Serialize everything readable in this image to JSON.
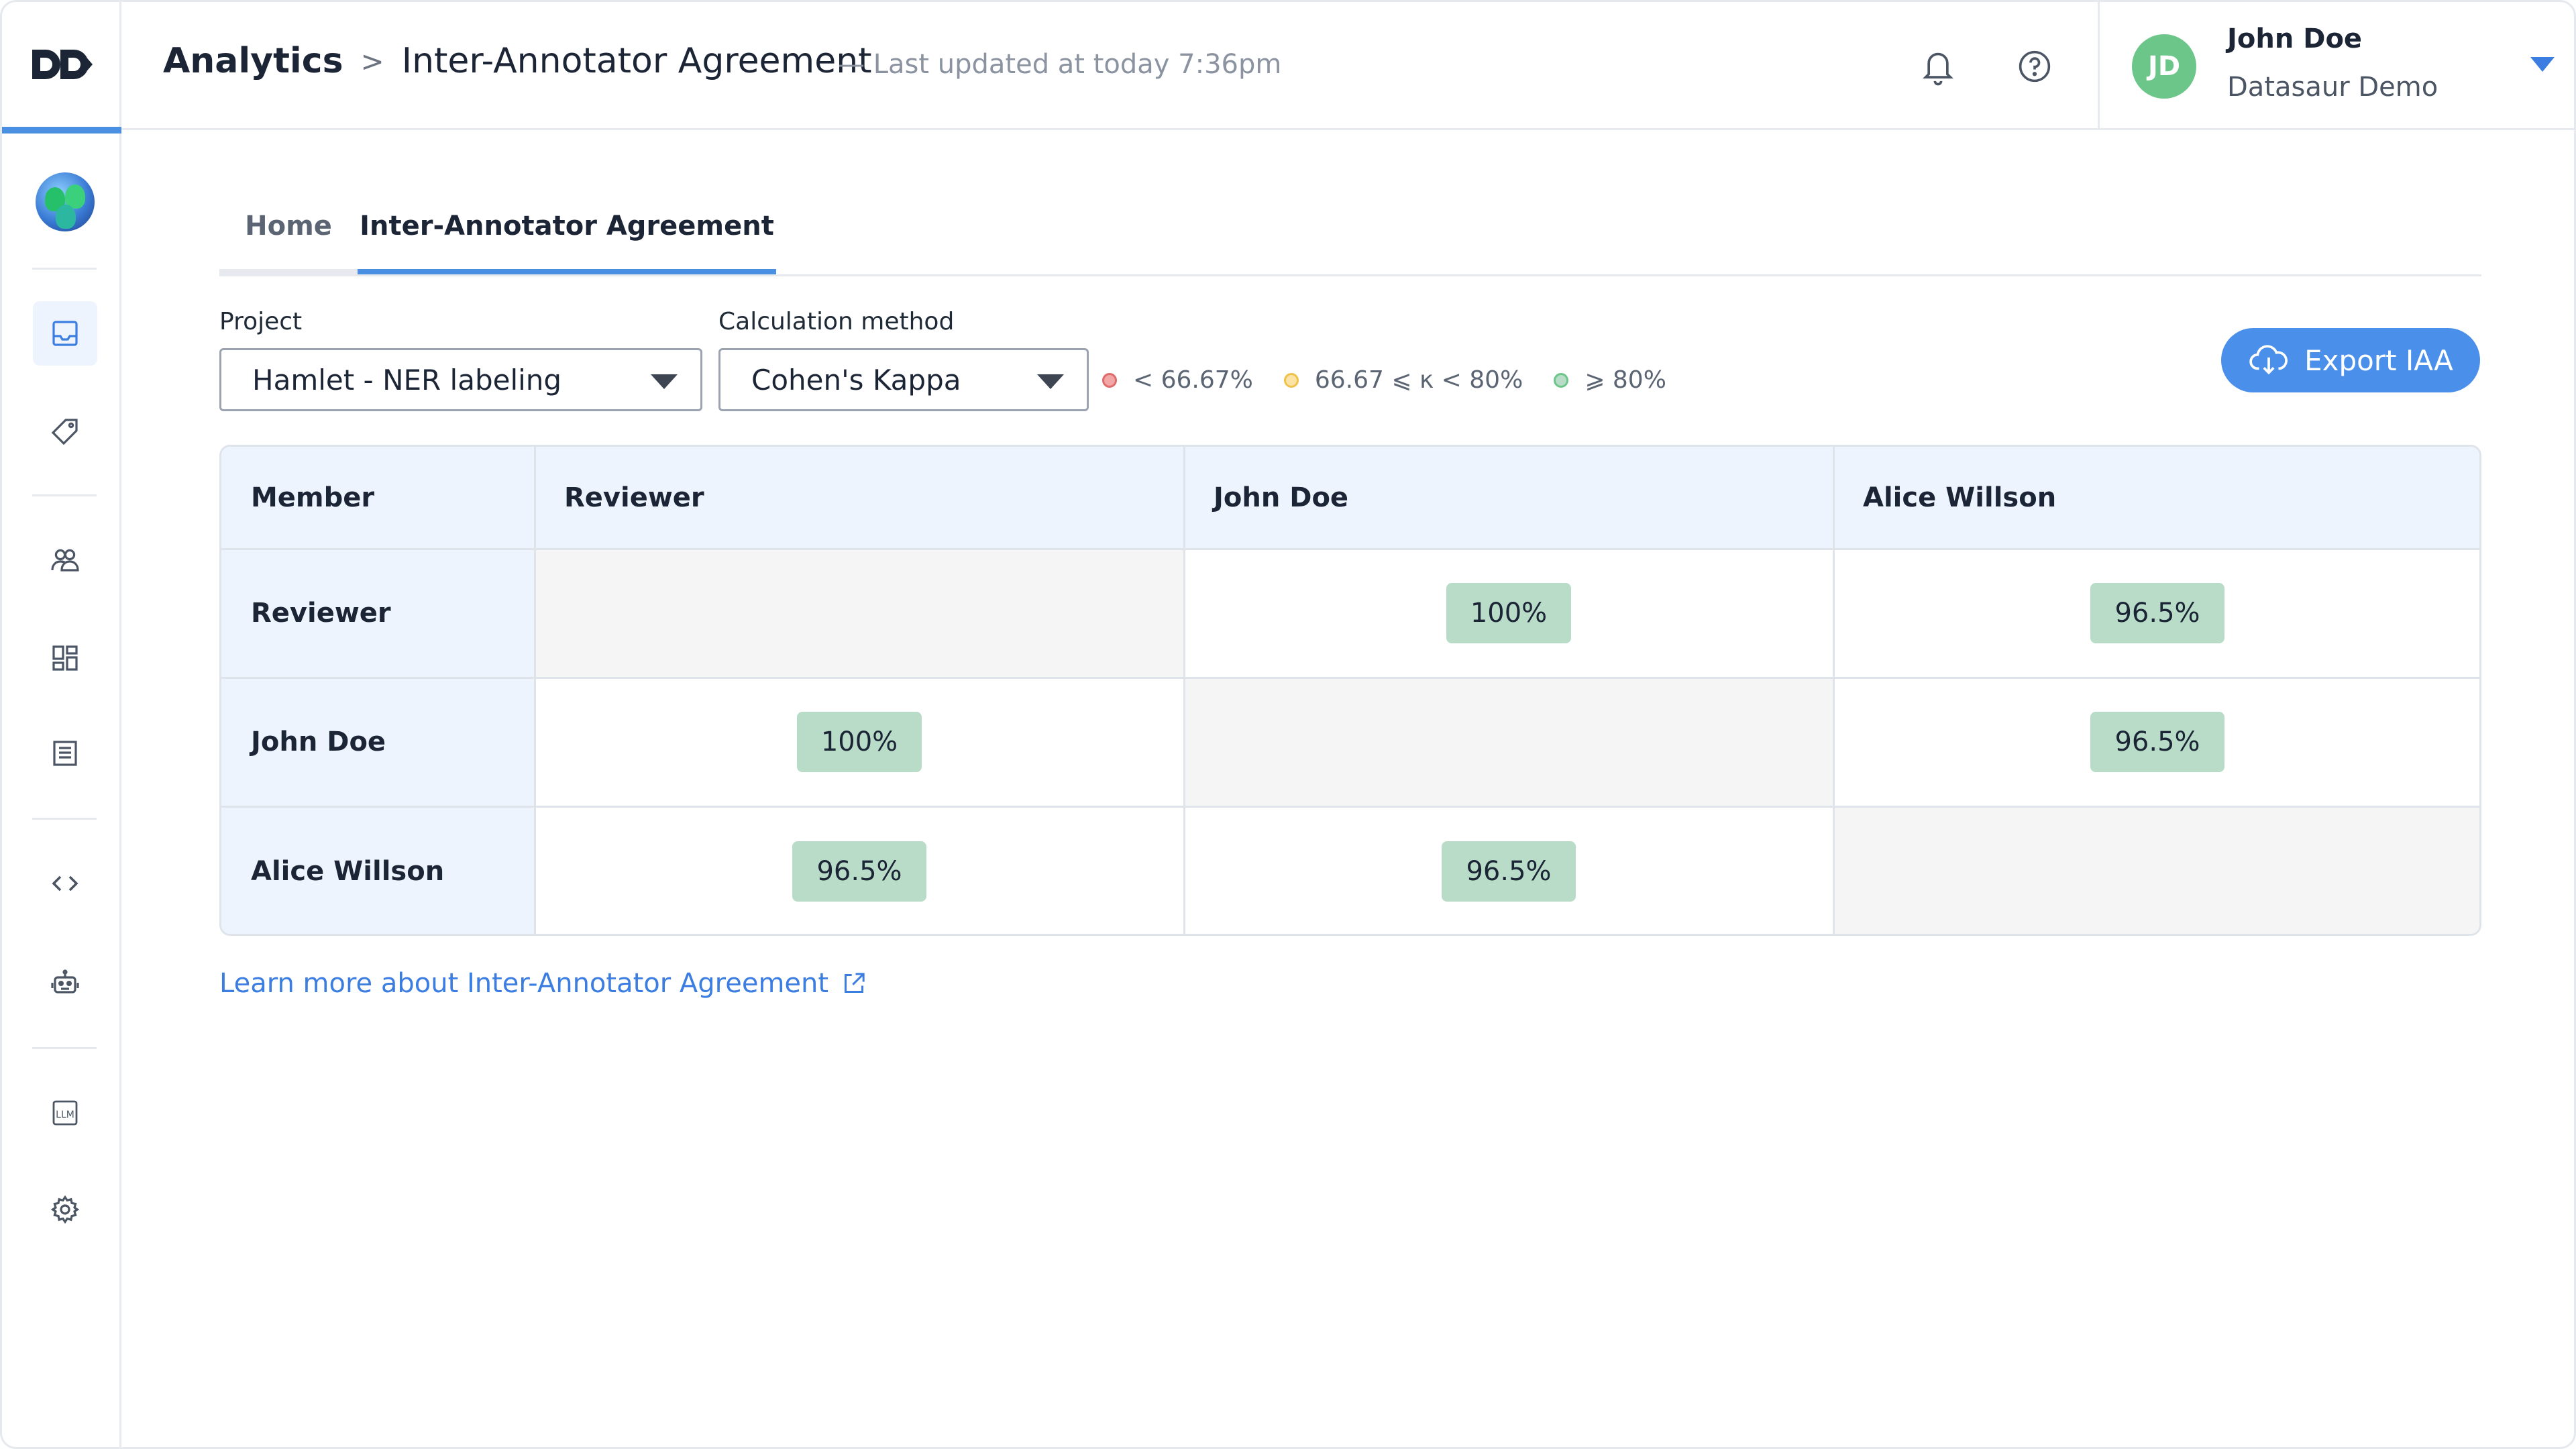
{
  "app": {
    "logo_text": "D▷"
  },
  "header": {
    "breadcrumb_root": "Analytics",
    "breadcrumb_sep": ">",
    "breadcrumb_current": "Inter-Annotator Agreement",
    "last_updated": "— Last updated at today 7:36pm",
    "user": {
      "initials": "JD",
      "name": "John Doe",
      "org": "Datasaur Demo"
    }
  },
  "sidebar": {
    "icons": [
      "inbox-icon",
      "tag-icon",
      "team-icon",
      "dashboard-icon",
      "document-list-icon",
      "code-icon",
      "robot-icon",
      "llm-icon",
      "gear-icon"
    ]
  },
  "tabs": [
    {
      "label": "Home"
    },
    {
      "label": "Inter-Annotator Agreement"
    }
  ],
  "controls": {
    "project_label": "Project",
    "project_value": "Hamlet - NER labeling",
    "method_label": "Calculation method",
    "method_value": "Cohen's Kappa",
    "legend": [
      {
        "label": "< 66.67%",
        "color": "#f2a6a6",
        "border": "#e06b6b"
      },
      {
        "label": "66.67 ⩽ κ < 80%",
        "color": "#fbe3a6",
        "border": "#f0c24a"
      },
      {
        "label": "⩾ 80%",
        "color": "#b8dcc7",
        "border": "#6cc68a"
      }
    ],
    "export_label": "Export IAA"
  },
  "table": {
    "corner_header": "Member",
    "columns": [
      "Reviewer",
      "John Doe",
      "Alice Willson"
    ],
    "rows": [
      {
        "label": "Reviewer",
        "values": [
          "",
          "100%",
          "96.5%"
        ]
      },
      {
        "label": "John Doe",
        "values": [
          "100%",
          "",
          "96.5%"
        ]
      },
      {
        "label": "Alice Willson",
        "values": [
          "96.5%",
          "96.5%",
          ""
        ]
      }
    ],
    "good_color": "#b8dcc7"
  },
  "learn_more": "Learn more about Inter-Annotator Agreement"
}
